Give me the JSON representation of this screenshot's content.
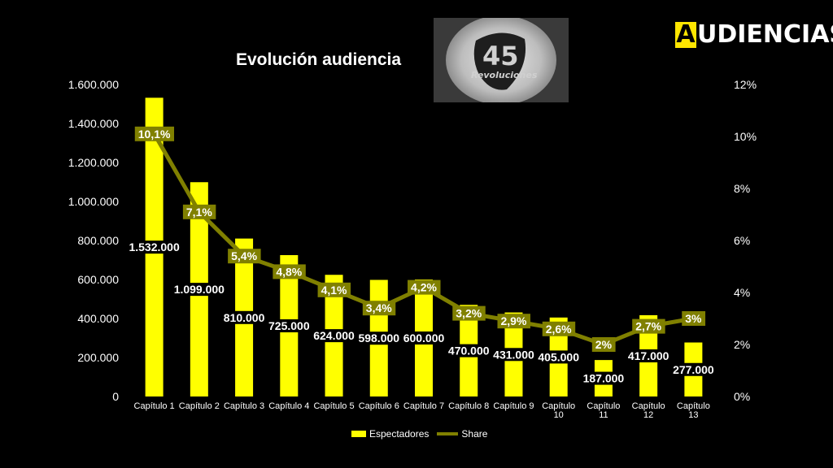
{
  "brand": {
    "logo_letter": "A",
    "logo_rest": "UDIENCIAS",
    "accent": "#ffe600"
  },
  "thumbnail": {
    "icon": "45-revoluciones-logo",
    "text_number": "45",
    "text_word": "Revoluciones"
  },
  "chart_data": {
    "type": "bar",
    "title": "Evolución audiencia",
    "categories": [
      [
        "Capítulo 1"
      ],
      [
        "Capítulo 2"
      ],
      [
        "Capítulo 3"
      ],
      [
        "Capítulo 4"
      ],
      [
        "Capítulo 5"
      ],
      [
        "Capítulo 6"
      ],
      [
        "Capítulo 7"
      ],
      [
        "Capítulo 8"
      ],
      [
        "Capítulo 9"
      ],
      [
        "Capítulo",
        "10"
      ],
      [
        "Capítulo",
        "11"
      ],
      [
        "Capítulo",
        "12"
      ],
      [
        "Capítulo",
        "13"
      ]
    ],
    "series": [
      {
        "name": "Espectadores",
        "type": "bar",
        "axis": "left",
        "color": "#ffff00",
        "values": [
          1532000,
          1099000,
          810000,
          725000,
          624000,
          598000,
          600000,
          470000,
          431000,
          405000,
          187000,
          417000,
          277000
        ],
        "labels": [
          "1.532.000",
          "1.099.000",
          "810.000",
          "725.000",
          "624.000",
          "598.000",
          "600.000",
          "470.000",
          "431.000",
          "405.000",
          "187.000",
          "417.000",
          "277.000"
        ]
      },
      {
        "name": "Share",
        "type": "line",
        "axis": "right",
        "color": "#808000",
        "values": [
          10.1,
          7.1,
          5.4,
          4.8,
          4.1,
          3.4,
          4.2,
          3.2,
          2.9,
          2.6,
          2.0,
          2.7,
          3.0
        ],
        "labels": [
          "10,1%",
          "7,1%",
          "5,4%",
          "4,8%",
          "4,1%",
          "3,4%",
          "4,2%",
          "3,2%",
          "2,9%",
          "2,6%",
          "2%",
          "2,7%",
          "3%"
        ]
      }
    ],
    "y_left": {
      "min": 0,
      "max": 1600000,
      "ticks": [
        0,
        200000,
        400000,
        600000,
        800000,
        1000000,
        1200000,
        1400000,
        1600000
      ],
      "tick_labels": [
        "0",
        "200.000",
        "400.000",
        "600.000",
        "800.000",
        "1.000.000",
        "1.200.000",
        "1.400.000",
        "1.600.000"
      ]
    },
    "y_right": {
      "min": 0,
      "max": 12,
      "ticks": [
        0,
        2,
        4,
        6,
        8,
        10,
        12
      ],
      "tick_labels": [
        "0%",
        "2%",
        "4%",
        "6%",
        "8%",
        "10%",
        "12%"
      ]
    },
    "grid": false,
    "legend": "bottom"
  }
}
